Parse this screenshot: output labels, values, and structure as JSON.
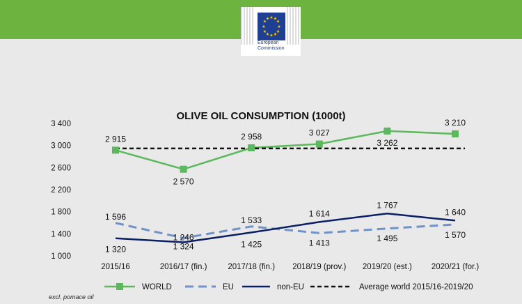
{
  "header": {
    "logo_line1": "European",
    "logo_line2": "Commission"
  },
  "chart_data": {
    "type": "line",
    "title": "OLIVE OIL CONSUMPTION (1000t)",
    "categories": [
      "2015/16",
      "2016/17 (fin.)",
      "2017/18 (fin.)",
      "2018/19 (prov.)",
      "2019/20 (est.)",
      "2020/21 (for.)"
    ],
    "ylim": [
      1000,
      3400
    ],
    "yticks": [
      1000,
      1400,
      1800,
      2200,
      2600,
      3000,
      3400
    ],
    "ytick_labels": [
      "1 000",
      "1 400",
      "1 800",
      "2 200",
      "2 600",
      "3 000",
      "3 400"
    ],
    "grid": false,
    "legend_position": "bottom",
    "series": [
      {
        "name": "WORLD",
        "values": [
          2915,
          2570,
          2958,
          3027,
          3262,
          3210
        ],
        "labels": [
          "2 915",
          "2 570",
          "2 958",
          "3 027",
          "3 262",
          "3 210"
        ],
        "color": "#5cb85c",
        "style": "solid-square-markers"
      },
      {
        "name": "EU",
        "values": [
          1596,
          1324,
          1533,
          1413,
          1495,
          1570
        ],
        "labels": [
          "1 596",
          "1 324",
          "1 533",
          "1 413",
          "1 495",
          "1 570"
        ],
        "color": "#6f93c9",
        "style": "dashed"
      },
      {
        "name": "non-EU",
        "values": [
          1320,
          1246,
          1425,
          1614,
          1767,
          1640
        ],
        "labels": [
          "1 320",
          "1 246",
          "1 425",
          "1 614",
          "1 767",
          "1 640"
        ],
        "color": "#0b1f64",
        "style": "solid"
      },
      {
        "name": "Average world 2015/16-2019/20",
        "values": [
          2946,
          2946,
          2946,
          2946,
          2946,
          2946
        ],
        "color": "#111111",
        "style": "dashed"
      }
    ],
    "footnote": "excl. pomace oil"
  }
}
